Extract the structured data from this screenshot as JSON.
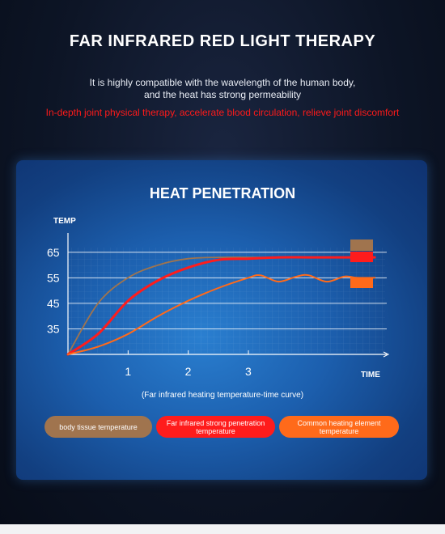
{
  "header": {
    "title": "FAR INFRARED RED LIGHT THERAPY",
    "subtitle_line1": "It is highly compatible with the wavelength of the human body,",
    "subtitle_line2": "and the heat has strong permeability",
    "highlight": "In-depth joint physical therapy, accelerate blood circulation, relieve joint discomfort"
  },
  "colors": {
    "highlight_red": "#ff1a1a",
    "body_tissue": "#a0744e",
    "far_infrared": "#ff1c1c",
    "common_heating": "#ff6a1a"
  },
  "chart_data": {
    "type": "line",
    "title": "HEAT PENETRATION",
    "ylabel": "TEMP",
    "xlabel": "TIME",
    "caption": "(Far infrared heating temperature-time curve)",
    "yticks": [
      "65",
      "55",
      "45",
      "35"
    ],
    "xticks": [
      "1",
      "2",
      "3"
    ],
    "xlim": [
      0,
      5.3
    ],
    "ylim": [
      25,
      70
    ],
    "grid": true,
    "series": [
      {
        "name": "body tissue temperature",
        "color": "#a0744e",
        "x": [
          0,
          0.5,
          1,
          1.5,
          2,
          2.5,
          3,
          3.5,
          4,
          4.5,
          5.1
        ],
        "y": [
          25,
          45,
          55,
          60,
          62.5,
          63,
          63,
          63,
          63,
          63,
          63
        ]
      },
      {
        "name": "Far infrared strong penetration temperature",
        "color": "#ff1c1c",
        "x": [
          0,
          0.5,
          1,
          1.5,
          2,
          2.5,
          3,
          3.5,
          4,
          4.5,
          5.1
        ],
        "y": [
          25,
          33,
          46,
          54,
          59,
          62,
          62.5,
          63,
          63,
          63,
          63
        ]
      },
      {
        "name": "Common heating element temperature",
        "color": "#ff6a1a",
        "x": [
          0,
          0.5,
          1,
          1.5,
          2,
          2.5,
          3,
          3.2,
          3.5,
          3.8,
          4.0,
          4.3,
          4.6,
          4.8,
          5.1
        ],
        "y": [
          25,
          28,
          33,
          40,
          46,
          51,
          55,
          56,
          53.5,
          55.5,
          56,
          53.5,
          55.5,
          55,
          55
        ]
      }
    ]
  },
  "legend": [
    {
      "label": "body tissue temperature",
      "color": "#a0744e"
    },
    {
      "label": "Far infrared strong penetration temperature",
      "color": "#ff1c1c"
    },
    {
      "label": "Common heating element temperature",
      "color": "#ff6a1a"
    }
  ]
}
